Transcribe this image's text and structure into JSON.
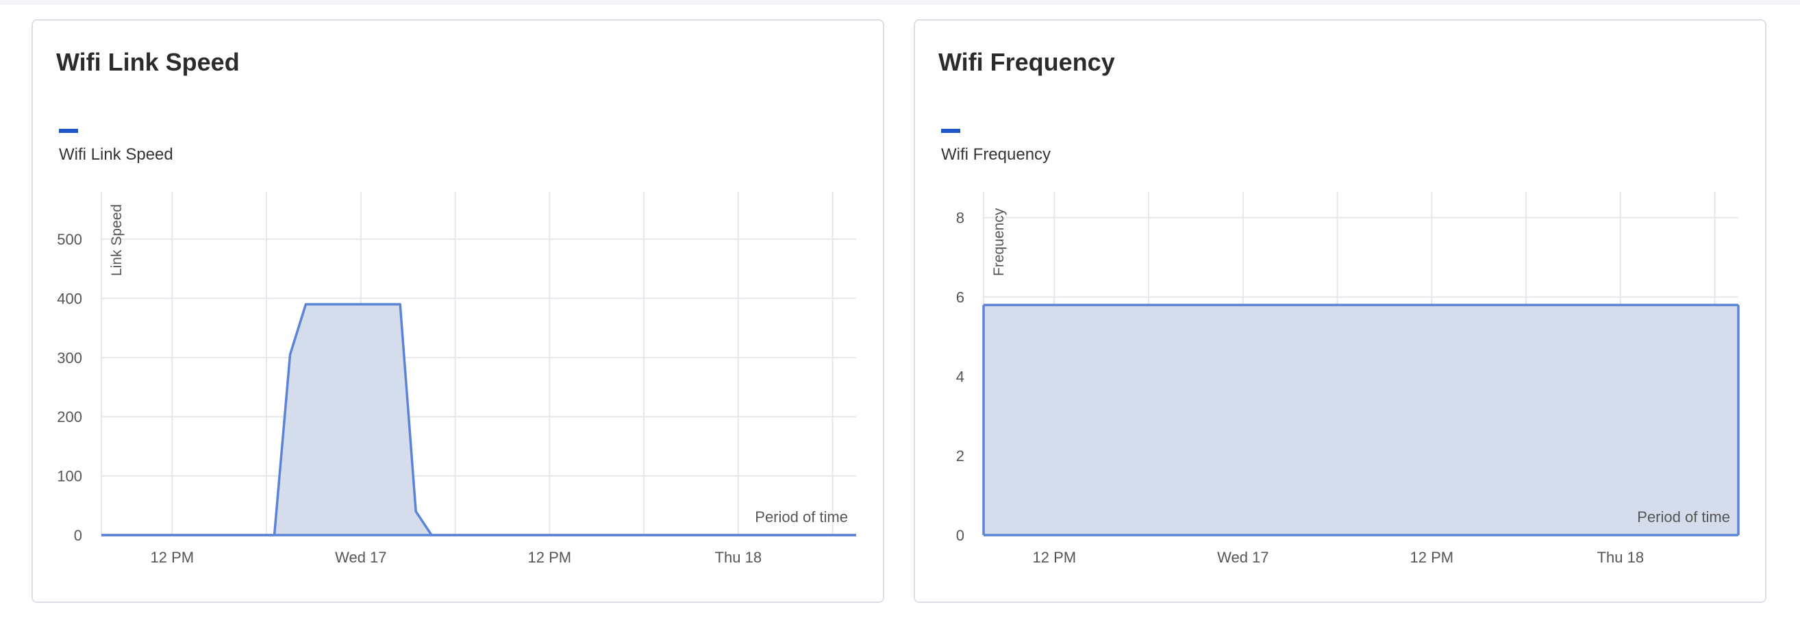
{
  "chart_data": [
    {
      "type": "area",
      "title": "Wifi Link Speed",
      "legend": [
        "Wifi Link Speed"
      ],
      "ylabel": "Link Speed",
      "xlabel": "Period of time",
      "ylim": [
        0,
        580
      ],
      "yticks": [
        0,
        100,
        200,
        300,
        400,
        500
      ],
      "xlim": [
        0,
        24
      ],
      "xticks": [
        {
          "x": 2.25,
          "label": "12 PM"
        },
        {
          "x": 8.25,
          "label": "Wed 17"
        },
        {
          "x": 14.25,
          "label": "12 PM"
        },
        {
          "x": 20.25,
          "label": "Thu 18"
        }
      ],
      "xgrid": [
        2.25,
        5.25,
        8.25,
        11.25,
        14.25,
        17.25,
        20.25,
        23.25
      ],
      "series": [
        {
          "name": "Wifi Link Speed",
          "color": "#5b83d6",
          "fill": "#d5dcec",
          "x": [
            0,
            5.5,
            6.0,
            6.5,
            9.5,
            10.0,
            10.5,
            24
          ],
          "y": [
            0,
            0,
            305,
            390,
            390,
            40,
            0,
            0
          ]
        }
      ]
    },
    {
      "type": "area",
      "title": "Wifi Frequency",
      "legend": [
        "Wifi Frequency"
      ],
      "ylabel": "Frequency",
      "xlabel": "Period of time",
      "ylim": [
        0,
        8.65
      ],
      "yticks": [
        0,
        2,
        4,
        6,
        8
      ],
      "xlim": [
        0,
        24
      ],
      "xticks": [
        {
          "x": 2.25,
          "label": "12 PM"
        },
        {
          "x": 8.25,
          "label": "Wed 17"
        },
        {
          "x": 14.25,
          "label": "12 PM"
        },
        {
          "x": 20.25,
          "label": "Thu 18"
        }
      ],
      "xgrid": [
        2.25,
        5.25,
        8.25,
        11.25,
        14.25,
        17.25,
        20.25,
        23.25
      ],
      "series": [
        {
          "name": "Wifi Frequency",
          "color": "#5b83d6",
          "fill": "#d5dcec",
          "x": [
            0,
            24
          ],
          "y": [
            5.8,
            5.8
          ]
        }
      ]
    }
  ]
}
